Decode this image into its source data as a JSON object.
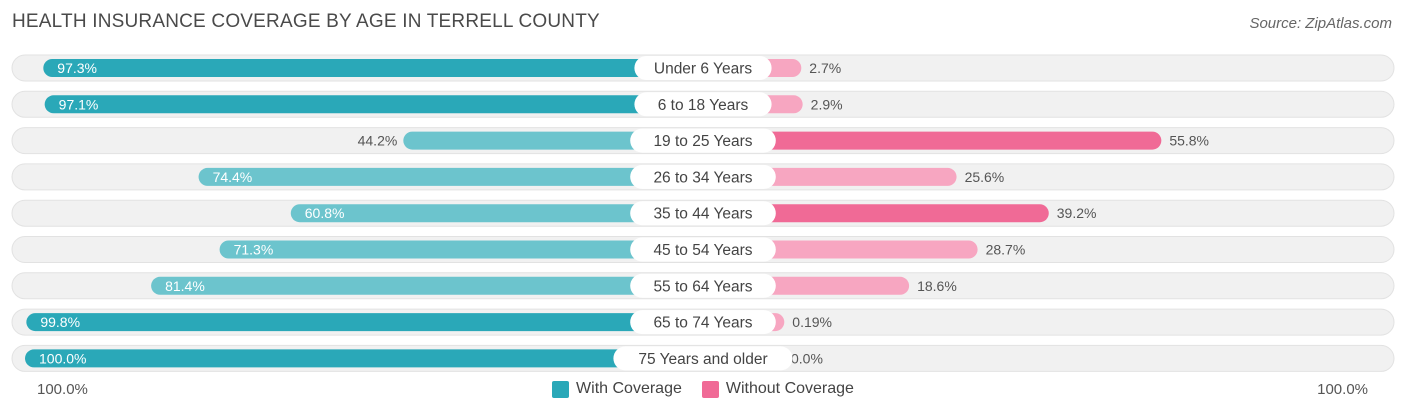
{
  "title": "HEALTH INSURANCE COVERAGE BY AGE IN TERRELL COUNTY",
  "source": "Source: ZipAtlas.com",
  "colors": {
    "with_dark": "#2aa8b8",
    "with_light": "#6cc4cd",
    "without_dark": "#f06a96",
    "without_light": "#f7a6c1",
    "track": "#f0f0f0"
  },
  "chart_data": {
    "type": "bar",
    "orientation": "horizontal-diverging",
    "title": "HEALTH INSURANCE COVERAGE BY AGE IN TERRELL COUNTY",
    "categories": [
      "Under 6 Years",
      "6 to 18 Years",
      "19 to 25 Years",
      "26 to 34 Years",
      "35 to 44 Years",
      "45 to 54 Years",
      "55 to 64 Years",
      "65 to 74 Years",
      "75 Years and older"
    ],
    "series": [
      {
        "name": "With Coverage",
        "values": [
          97.3,
          97.1,
          44.2,
          74.4,
          60.8,
          71.3,
          81.4,
          99.8,
          100.0
        ],
        "labels": [
          "97.3%",
          "97.1%",
          "44.2%",
          "74.4%",
          "60.8%",
          "71.3%",
          "81.4%",
          "99.8%",
          "100.0%"
        ]
      },
      {
        "name": "Without Coverage",
        "values": [
          2.7,
          2.9,
          55.8,
          25.6,
          39.2,
          28.7,
          18.6,
          0.19,
          0.0
        ],
        "labels": [
          "2.7%",
          "2.9%",
          "55.8%",
          "25.6%",
          "39.2%",
          "28.7%",
          "18.6%",
          "0.19%",
          "0.0%"
        ]
      }
    ],
    "xlim": [
      -100,
      100
    ],
    "axis_labels": {
      "left": "100.0%",
      "right": "100.0%"
    },
    "legend": [
      "With Coverage",
      "Without Coverage"
    ],
    "legend_position": "bottom-center"
  }
}
